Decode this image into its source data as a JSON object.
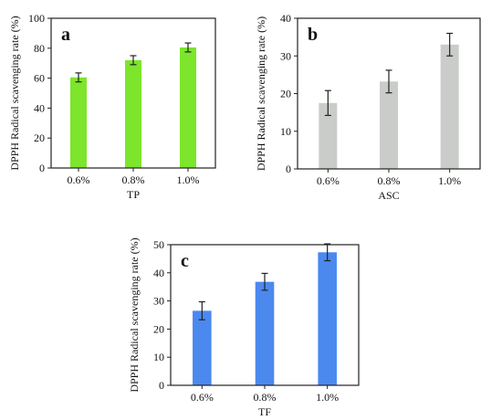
{
  "chart_data": [
    {
      "id": "a",
      "type": "bar",
      "panel_label": "a",
      "categories": [
        "0.6%",
        "0.8%",
        "1.0%"
      ],
      "values": [
        60.5,
        72,
        80.5
      ],
      "errors": [
        3,
        3,
        3
      ],
      "xlabel": "TP",
      "ylabel": "DPPH Radical scavenging rate (%)",
      "ylim": [
        0,
        100
      ],
      "yticks": [
        0,
        20,
        40,
        60,
        80,
        100
      ],
      "bar_color": "#7de52c"
    },
    {
      "id": "b",
      "type": "bar",
      "panel_label": "b",
      "categories": [
        "0.6%",
        "0.8%",
        "1.0%"
      ],
      "values": [
        17.5,
        23.2,
        33
      ],
      "errors": [
        3.3,
        3,
        3
      ],
      "xlabel": "ASC",
      "ylabel": "DPPH Radical scavenging rate (%)",
      "ylim": [
        0,
        40
      ],
      "yticks": [
        0,
        10,
        20,
        30,
        40
      ],
      "bar_color": "#c9ccc9"
    },
    {
      "id": "c",
      "type": "bar",
      "panel_label": "c",
      "categories": [
        "0.6%",
        "0.8%",
        "1.0%"
      ],
      "values": [
        26.5,
        36.8,
        47.3
      ],
      "errors": [
        3.2,
        3,
        3
      ],
      "xlabel": "TF",
      "ylabel": "DPPH Radical scavenging rate (%)",
      "ylim": [
        0,
        50
      ],
      "yticks": [
        0,
        10,
        20,
        30,
        40,
        50
      ],
      "bar_color": "#4b89ef"
    }
  ]
}
